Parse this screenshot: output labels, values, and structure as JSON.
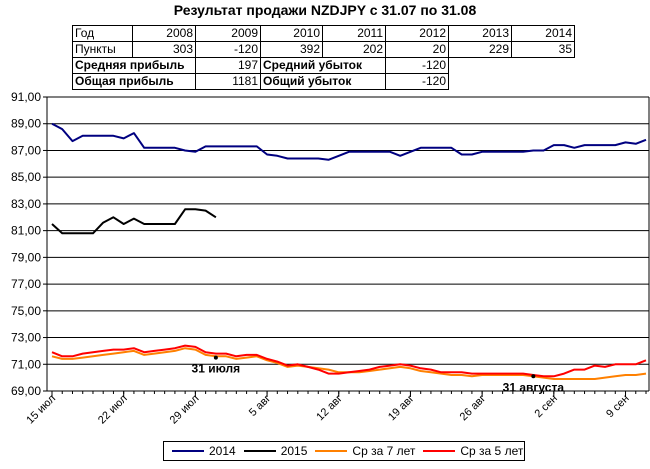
{
  "title": "Результат продажи NZDJPY с 31.07 по 31.08",
  "table": {
    "row_year": [
      "Год",
      "2008",
      "2009",
      "2010",
      "2011",
      "2012",
      "2013",
      "2014"
    ],
    "row_points": [
      "Пункты",
      "303",
      "-120",
      "392",
      "202",
      "20",
      "229",
      "35"
    ],
    "avg_profit_label": "Средняя прибыль",
    "avg_profit_value": "197",
    "avg_loss_label": "Средний убыток",
    "avg_loss_value": "-120",
    "total_profit_label": "Общая прибыль",
    "total_profit_value": "1181",
    "total_loss_label": "Общий убыток",
    "total_loss_value": "-120"
  },
  "chart_data": {
    "type": "line",
    "ylim": [
      69,
      91
    ],
    "y_ticks": [
      "69,00",
      "71,00",
      "73,00",
      "75,00",
      "77,00",
      "79,00",
      "81,00",
      "83,00",
      "85,00",
      "87,00",
      "89,00",
      "91,00"
    ],
    "x_ticks": [
      "15 июл",
      "22 июл",
      "29 июл",
      "5 авг",
      "12 авг",
      "19 авг",
      "26 авг",
      "2 сен",
      "9 сен"
    ],
    "x_tick_days": [
      0,
      7,
      14,
      21,
      28,
      35,
      42,
      49,
      56
    ],
    "x_range_days": [
      0,
      58
    ],
    "grid": true,
    "legend_position": "bottom",
    "series": [
      {
        "name": "2014",
        "color": "#000080",
        "x": [
          0,
          1,
          2,
          3,
          4,
          5,
          6,
          7,
          8,
          9,
          10,
          11,
          12,
          13,
          14,
          15,
          16,
          17,
          18,
          19,
          20,
          21,
          22,
          23,
          24,
          25,
          26,
          27,
          28,
          29,
          30,
          31,
          32,
          33,
          34,
          35,
          36,
          37,
          38,
          39,
          40,
          41,
          42,
          43,
          44,
          45,
          46,
          47,
          48,
          49,
          50,
          51,
          52,
          53,
          54,
          55,
          56,
          57,
          58
        ],
        "values": [
          89.0,
          88.6,
          87.7,
          88.1,
          88.1,
          88.1,
          88.1,
          87.9,
          88.3,
          87.2,
          87.2,
          87.2,
          87.2,
          87.0,
          86.9,
          87.3,
          87.3,
          87.3,
          87.3,
          87.3,
          87.3,
          86.7,
          86.6,
          86.4,
          86.4,
          86.4,
          86.4,
          86.3,
          86.6,
          86.9,
          86.9,
          86.9,
          86.9,
          86.9,
          86.6,
          86.9,
          87.2,
          87.2,
          87.2,
          87.2,
          86.7,
          86.7,
          86.9,
          86.9,
          86.9,
          86.9,
          86.9,
          87.0,
          87.0,
          87.4,
          87.4,
          87.2,
          87.4,
          87.4,
          87.4,
          87.4,
          87.6,
          87.5,
          87.8
        ]
      },
      {
        "name": "2015",
        "color": "#000000",
        "x": [
          0,
          1,
          2,
          3,
          4,
          5,
          6,
          7,
          8,
          9,
          10,
          11,
          12,
          13,
          14,
          15,
          16
        ],
        "values": [
          81.5,
          80.8,
          80.8,
          80.8,
          80.8,
          81.6,
          82.0,
          81.5,
          81.9,
          81.5,
          81.5,
          81.5,
          81.5,
          82.6,
          82.6,
          82.5,
          82.0
        ]
      },
      {
        "name": "Ср за 7 лет",
        "color": "#ff8000",
        "x": [
          0,
          1,
          2,
          3,
          4,
          5,
          6,
          7,
          8,
          9,
          10,
          11,
          12,
          13,
          14,
          15,
          16,
          17,
          18,
          19,
          20,
          21,
          22,
          23,
          24,
          25,
          26,
          27,
          28,
          29,
          30,
          31,
          32,
          33,
          34,
          35,
          36,
          37,
          38,
          39,
          40,
          41,
          42,
          43,
          44,
          45,
          46,
          47,
          48,
          49,
          50,
          51,
          52,
          53,
          54,
          55,
          56,
          57,
          58
        ],
        "values": [
          71.6,
          71.4,
          71.4,
          71.5,
          71.6,
          71.7,
          71.8,
          71.9,
          72.0,
          71.7,
          71.8,
          71.9,
          72.0,
          72.2,
          72.1,
          71.7,
          71.6,
          71.6,
          71.4,
          71.5,
          71.6,
          71.3,
          71.1,
          70.8,
          70.9,
          70.8,
          70.7,
          70.6,
          70.4,
          70.4,
          70.4,
          70.5,
          70.6,
          70.7,
          70.8,
          70.7,
          70.5,
          70.4,
          70.3,
          70.2,
          70.2,
          70.1,
          70.2,
          70.2,
          70.2,
          70.2,
          70.2,
          70.1,
          70.0,
          69.9,
          69.9,
          69.9,
          69.9,
          69.9,
          70.0,
          70.1,
          70.2,
          70.2,
          70.3
        ]
      },
      {
        "name": "Ср за 5 лет",
        "color": "#ff0000",
        "x": [
          0,
          1,
          2,
          3,
          4,
          5,
          6,
          7,
          8,
          9,
          10,
          11,
          12,
          13,
          14,
          15,
          16,
          17,
          18,
          19,
          20,
          21,
          22,
          23,
          24,
          25,
          26,
          27,
          28,
          29,
          30,
          31,
          32,
          33,
          34,
          35,
          36,
          37,
          38,
          39,
          40,
          41,
          42,
          43,
          44,
          45,
          46,
          47,
          48,
          49,
          50,
          51,
          52,
          53,
          54,
          55,
          56,
          57,
          58
        ],
        "values": [
          71.9,
          71.6,
          71.6,
          71.8,
          71.9,
          72.0,
          72.1,
          72.1,
          72.2,
          71.9,
          72.0,
          72.1,
          72.2,
          72.4,
          72.3,
          71.9,
          71.8,
          71.8,
          71.6,
          71.7,
          71.7,
          71.4,
          71.2,
          70.9,
          71.0,
          70.8,
          70.6,
          70.3,
          70.3,
          70.4,
          70.5,
          70.6,
          70.8,
          70.9,
          71.0,
          70.9,
          70.7,
          70.6,
          70.4,
          70.4,
          70.4,
          70.3,
          70.3,
          70.3,
          70.3,
          70.3,
          70.3,
          70.2,
          70.1,
          70.1,
          70.3,
          70.6,
          70.6,
          70.9,
          70.8,
          71.0,
          71.0,
          71.0,
          71.3
        ]
      }
    ],
    "annotations": [
      {
        "text": "31 июля",
        "x": 16,
        "y": 71.5
      },
      {
        "text": "31 августа",
        "x": 47,
        "y": 70.1
      }
    ]
  }
}
